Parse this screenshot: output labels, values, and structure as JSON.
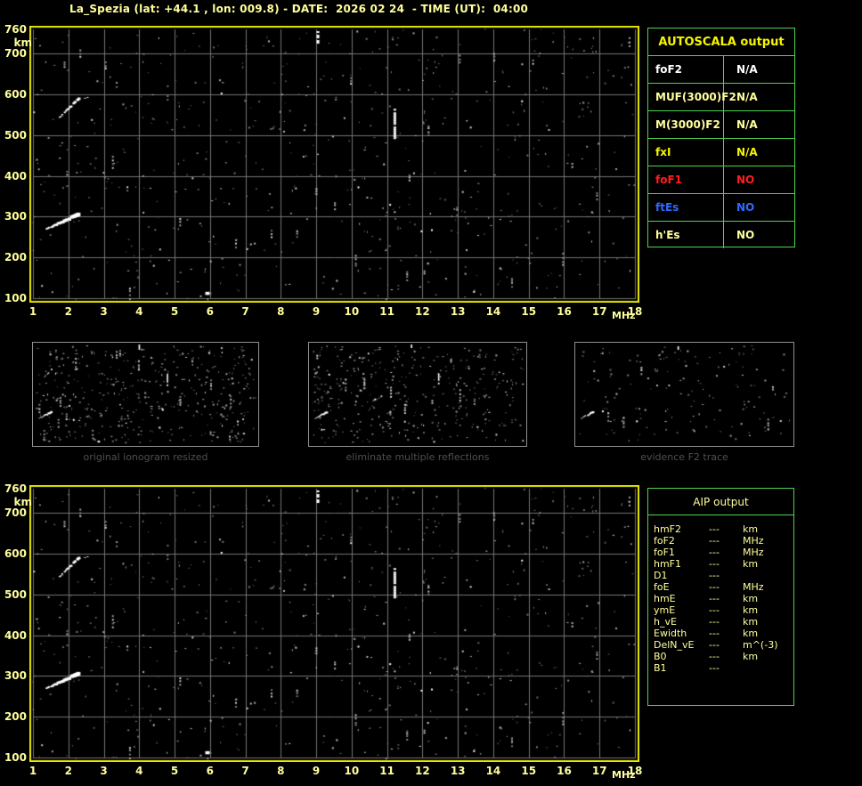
{
  "title": "La_Spezia (lat: +44.1 , lon: 009.8) - DATE:  2026 02 24  - TIME (UT):  04:00",
  "colors": {
    "background": "#000000",
    "pale_yellow": "#ffff9c",
    "bright_yellow": "#f6f600",
    "plot_border": "#e8e800",
    "grid": "#757575",
    "table_green": "#4ed44e",
    "white": "#ffffff",
    "red": "#ff1e1e",
    "blue": "#2e6bff",
    "caption_gray": "#4f4f4f",
    "thumb_border": "#8f8f8f"
  },
  "autoscala": {
    "title": "AUTOSCALA output",
    "rows": [
      {
        "label": "foF2",
        "value": "N/A",
        "color": "#ffffff"
      },
      {
        "label": "MUF(3000)F2",
        "value": "N/A",
        "color": "#ffff9c"
      },
      {
        "label": "M(3000)F2",
        "value": "N/A",
        "color": "#ffff9c"
      },
      {
        "label": "fxI",
        "value": "N/A",
        "color": "#f6f600"
      },
      {
        "label": "foF1",
        "value": "NO",
        "color": "#ff1e1e"
      },
      {
        "label": "ftEs",
        "value": "NO",
        "color": "#2e6bff"
      },
      {
        "label": "h'Es",
        "value": "NO",
        "color": "#ffff9c"
      }
    ]
  },
  "aip": {
    "title": "AIP output",
    "rows": [
      {
        "label": "hmF2",
        "value": "---",
        "unit": "km"
      },
      {
        "label": "foF2",
        "value": "---",
        "unit": "MHz"
      },
      {
        "label": "foF1",
        "value": "---",
        "unit": "MHz"
      },
      {
        "label": "hmF1",
        "value": "---",
        "unit": "km"
      },
      {
        "label": "D1",
        "value": "---",
        "unit": ""
      },
      {
        "label": "foE",
        "value": "---",
        "unit": "MHz"
      },
      {
        "label": "hmE",
        "value": "---",
        "unit": "km"
      },
      {
        "label": "ymE",
        "value": "---",
        "unit": "km"
      },
      {
        "label": "h_vE",
        "value": "---",
        "unit": "km"
      },
      {
        "label": "Ewidth",
        "value": "---",
        "unit": "km"
      },
      {
        "label": "DelN_vE",
        "value": "---",
        "unit": "m^(-3)"
      },
      {
        "label": "B0",
        "value": "---",
        "unit": "km"
      },
      {
        "label": "B1",
        "value": "---",
        "unit": ""
      }
    ]
  },
  "ionogram": {
    "x_range": [
      1,
      18
    ],
    "y_range": [
      100,
      760
    ],
    "x_ticks": [
      1,
      2,
      3,
      4,
      5,
      6,
      7,
      8,
      9,
      10,
      11,
      12,
      13,
      14,
      15,
      16,
      17,
      18
    ],
    "x_unit": "MHz",
    "y_ticks": [
      760,
      700,
      600,
      500,
      400,
      300,
      200,
      100
    ],
    "y_gridlines": [
      100,
      200,
      300,
      400,
      500,
      600,
      700
    ],
    "y_unit": "km",
    "noise": {
      "seed": 7,
      "count": 640,
      "clusters": 30
    },
    "features": [
      {
        "id": "f-trace",
        "type": "trace",
        "f1": 1.35,
        "km1": 268,
        "f2": 2.28,
        "km2": 304,
        "w1": 2,
        "w2": 5,
        "gap": 0.06
      },
      {
        "id": "f-trace-2hop",
        "type": "trace",
        "f1": 1.68,
        "km1": 538,
        "f2": 2.3,
        "km2": 589,
        "w1": 1.5,
        "w2": 3.5,
        "gap": 0.3
      },
      {
        "id": "streak-11mhz",
        "type": "streak",
        "f": 11.22,
        "km1": 492,
        "km2": 565,
        "w": 3
      },
      {
        "id": "streak-9mhz",
        "type": "streak",
        "f": 9.05,
        "km1": 726,
        "km2": 760,
        "w": 3
      },
      {
        "id": "spot-6mhz",
        "type": "spot",
        "f": 5.93,
        "km": 112,
        "w": 5
      }
    ]
  },
  "thumbs": [
    {
      "caption": "original ionogram resized",
      "noise": {
        "seed": 11,
        "count": 430,
        "clusters": 16
      },
      "items": [
        "f-trace",
        "f-trace-2hop",
        "streak-11mhz",
        "streak-9mhz",
        "spot-6mhz"
      ]
    },
    {
      "caption": "eliminate multiple reflections",
      "noise": {
        "seed": 12,
        "count": 390,
        "clusters": 12
      },
      "items": [
        "f-trace",
        "streak-11mhz",
        "streak-9mhz"
      ]
    },
    {
      "caption": "evidence F2 trace",
      "noise": {
        "seed": 13,
        "count": 150,
        "clusters": 5
      },
      "items": [
        "f-trace",
        "streak-9mhz"
      ]
    }
  ]
}
